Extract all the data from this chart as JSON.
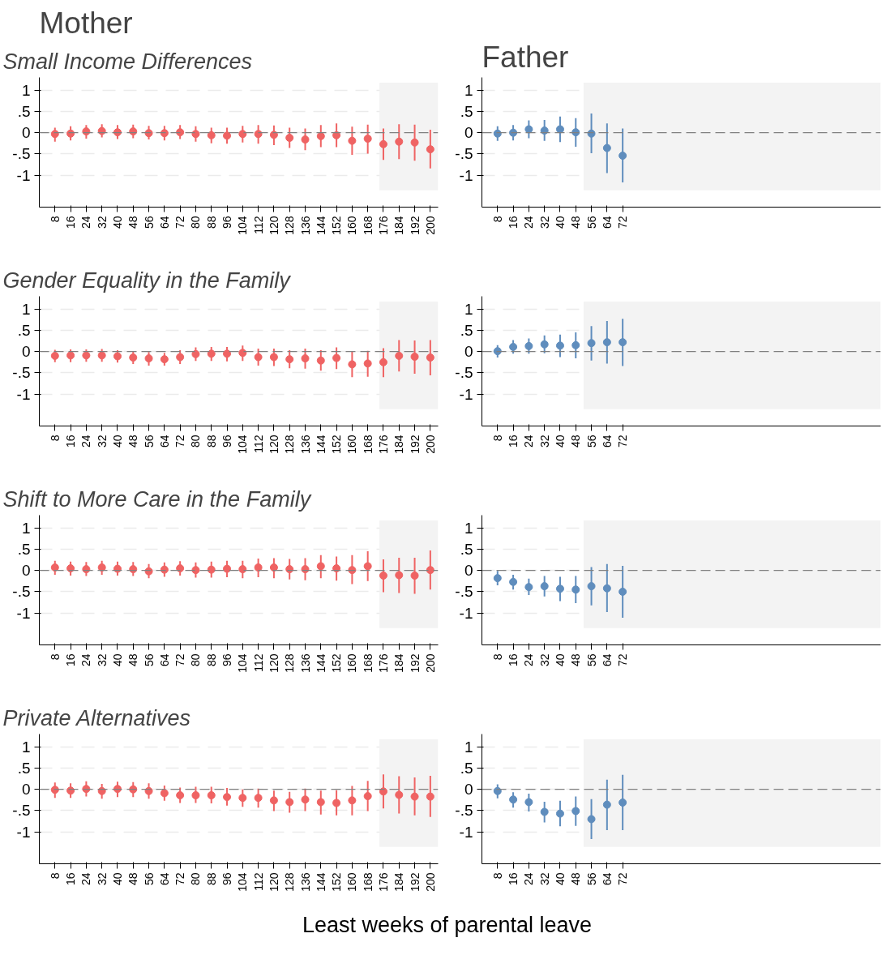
{
  "chart_data": [
    {
      "type": "scatter",
      "title": "Mother",
      "subtitle": "Small Income Differences",
      "x": [
        8,
        16,
        24,
        32,
        40,
        48,
        56,
        64,
        72,
        80,
        88,
        96,
        104,
        112,
        120,
        128,
        136,
        144,
        152,
        160,
        168,
        176,
        184,
        192,
        200
      ],
      "xlim": [
        0,
        204
      ],
      "xticks": [
        8,
        16,
        24,
        32,
        40,
        48,
        56,
        64,
        72,
        80,
        88,
        96,
        104,
        112,
        120,
        128,
        136,
        144,
        152,
        160,
        168,
        176,
        184,
        192,
        200
      ],
      "ylim": [
        -1.75,
        1.3
      ],
      "yticks": [
        {
          "value": -1,
          "label": "-1"
        },
        {
          "value": -0.5,
          "label": "-.5"
        },
        0,
        {
          "value": 0.5,
          "label": ".5"
        },
        1
      ],
      "grid": "y",
      "marker": "circle",
      "series": [
        {
          "color": "#ef6363",
          "values": [
            -0.03,
            -0.02,
            0.03,
            0.04,
            0.01,
            0.03,
            -0.01,
            -0.01,
            0.01,
            -0.03,
            -0.06,
            -0.07,
            -0.03,
            -0.03,
            -0.05,
            -0.12,
            -0.16,
            -0.08,
            -0.06,
            -0.19,
            -0.14,
            -0.27,
            -0.21,
            -0.23,
            -0.39
          ],
          "errors": [
            [
              -0.21,
              0.12
            ],
            [
              -0.18,
              0.15
            ],
            [
              -0.14,
              0.18
            ],
            [
              -0.11,
              0.2
            ],
            [
              -0.15,
              0.18
            ],
            [
              -0.13,
              0.19
            ],
            [
              -0.16,
              0.16
            ],
            [
              -0.18,
              0.16
            ],
            [
              -0.15,
              0.18
            ],
            [
              -0.21,
              0.15
            ],
            [
              -0.25,
              0.12
            ],
            [
              -0.26,
              0.12
            ],
            [
              -0.23,
              0.16
            ],
            [
              -0.26,
              0.18
            ],
            [
              -0.29,
              0.17
            ],
            [
              -0.36,
              0.12
            ],
            [
              -0.41,
              0.1
            ],
            [
              -0.34,
              0.18
            ],
            [
              -0.34,
              0.22
            ],
            [
              -0.52,
              0.14
            ],
            [
              -0.49,
              0.19
            ],
            [
              -0.64,
              0.1
            ],
            [
              -0.62,
              0.2
            ],
            [
              -0.66,
              0.19
            ],
            [
              -0.84,
              0.07
            ]
          ]
        }
      ],
      "ref_lines": [
        {
          "axis": "y",
          "value": 0,
          "color": "#808080",
          "line_style": "dashed"
        }
      ],
      "bands": [
        {
          "axis": "x",
          "from": 174,
          "to": 204,
          "color": "#f3f3f3"
        }
      ]
    },
    {
      "type": "scatter",
      "title": "Father",
      "x": [
        8,
        16,
        24,
        32,
        40,
        48,
        56,
        64,
        72
      ],
      "xlim": [
        0,
        204
      ],
      "xticks": [
        8,
        16,
        24,
        32,
        40,
        48,
        56,
        64,
        72
      ],
      "ylim": [
        -1.75,
        1.3
      ],
      "yticks": [
        {
          "value": -1,
          "label": "-1"
        },
        {
          "value": -0.5,
          "label": "-.5"
        },
        0,
        {
          "value": 0.5,
          "label": ".5"
        },
        1
      ],
      "grid": "y",
      "marker": "circle",
      "series": [
        {
          "color": "#5f8dbd",
          "values": [
            -0.02,
            0,
            0.08,
            0.05,
            0.08,
            0.01,
            -0.02,
            -0.36,
            -0.54
          ],
          "errors": [
            [
              -0.19,
              0.15
            ],
            [
              -0.18,
              0.18
            ],
            [
              -0.13,
              0.29
            ],
            [
              -0.19,
              0.3
            ],
            [
              -0.22,
              0.38
            ],
            [
              -0.33,
              0.34
            ],
            [
              -0.48,
              0.45
            ],
            [
              -0.95,
              0.22
            ],
            [
              -1.17,
              0.1
            ]
          ]
        }
      ],
      "ref_lines": [
        {
          "axis": "y",
          "value": 0,
          "color": "#808080",
          "line_style": "dashed"
        }
      ],
      "bands": [
        {
          "axis": "x",
          "from": 52,
          "to": 204,
          "color": "#f3f3f3"
        }
      ]
    },
    {
      "type": "scatter",
      "subtitle": "Gender Equality in the Family",
      "x": [
        8,
        16,
        24,
        32,
        40,
        48,
        56,
        64,
        72,
        80,
        88,
        96,
        104,
        112,
        120,
        128,
        136,
        144,
        152,
        160,
        168,
        176,
        184,
        192,
        200
      ],
      "xlim": [
        0,
        204
      ],
      "xticks": [
        8,
        16,
        24,
        32,
        40,
        48,
        56,
        64,
        72,
        80,
        88,
        96,
        104,
        112,
        120,
        128,
        136,
        144,
        152,
        160,
        168,
        176,
        184,
        192,
        200
      ],
      "ylim": [
        -1.75,
        1.3
      ],
      "yticks": [
        {
          "value": -1,
          "label": "-1"
        },
        {
          "value": -0.5,
          "label": "-.5"
        },
        0,
        {
          "value": 0.5,
          "label": ".5"
        },
        1
      ],
      "grid": "y",
      "marker": "circle",
      "series": [
        {
          "color": "#ef6363",
          "values": [
            -0.1,
            -0.09,
            -0.09,
            -0.09,
            -0.11,
            -0.14,
            -0.16,
            -0.18,
            -0.13,
            -0.06,
            -0.05,
            -0.05,
            -0.03,
            -0.13,
            -0.13,
            -0.18,
            -0.16,
            -0.21,
            -0.15,
            -0.3,
            -0.28,
            -0.25,
            -0.1,
            -0.12,
            -0.14
          ],
          "errors": [
            [
              -0.25,
              0.04
            ],
            [
              -0.25,
              0.05
            ],
            [
              -0.24,
              0.05
            ],
            [
              -0.24,
              0.06
            ],
            [
              -0.26,
              0.03
            ],
            [
              -0.29,
              0.01
            ],
            [
              -0.33,
              -0.01
            ],
            [
              -0.33,
              -0.03
            ],
            [
              -0.29,
              0.03
            ],
            [
              -0.22,
              0.1
            ],
            [
              -0.22,
              0.11
            ],
            [
              -0.23,
              0.11
            ],
            [
              -0.22,
              0.14
            ],
            [
              -0.33,
              0.07
            ],
            [
              -0.34,
              0.07
            ],
            [
              -0.39,
              0.03
            ],
            [
              -0.4,
              0.07
            ],
            [
              -0.45,
              0.03
            ],
            [
              -0.41,
              0.1
            ],
            [
              -0.6,
              0
            ],
            [
              -0.59,
              0.02
            ],
            [
              -0.6,
              0.08
            ],
            [
              -0.47,
              0.27
            ],
            [
              -0.52,
              0.26
            ],
            [
              -0.56,
              0.27
            ]
          ]
        }
      ],
      "ref_lines": [
        {
          "axis": "y",
          "value": 0,
          "color": "#808080",
          "line_style": "dashed"
        }
      ],
      "bands": [
        {
          "axis": "x",
          "from": 174,
          "to": 204,
          "color": "#f3f3f3"
        }
      ]
    },
    {
      "type": "scatter",
      "x": [
        8,
        16,
        24,
        32,
        40,
        48,
        56,
        64,
        72
      ],
      "xlim": [
        0,
        204
      ],
      "xticks": [
        8,
        16,
        24,
        32,
        40,
        48,
        56,
        64,
        72
      ],
      "ylim": [
        -1.75,
        1.3
      ],
      "yticks": [
        {
          "value": -1,
          "label": "-1"
        },
        {
          "value": -0.5,
          "label": "-.5"
        },
        0,
        {
          "value": 0.5,
          "label": ".5"
        },
        1
      ],
      "grid": "y",
      "marker": "circle",
      "series": [
        {
          "color": "#5f8dbd",
          "values": [
            0.01,
            0.11,
            0.13,
            0.17,
            0.14,
            0.15,
            0.2,
            0.22,
            0.22
          ],
          "errors": [
            [
              -0.14,
              0.15
            ],
            [
              -0.05,
              0.27
            ],
            [
              -0.05,
              0.31
            ],
            [
              -0.04,
              0.38
            ],
            [
              -0.13,
              0.4
            ],
            [
              -0.16,
              0.45
            ],
            [
              -0.21,
              0.6
            ],
            [
              -0.28,
              0.72
            ],
            [
              -0.34,
              0.77
            ]
          ]
        }
      ],
      "ref_lines": [
        {
          "axis": "y",
          "value": 0,
          "color": "#808080",
          "line_style": "dashed"
        }
      ],
      "bands": [
        {
          "axis": "x",
          "from": 52,
          "to": 204,
          "color": "#f3f3f3"
        }
      ]
    },
    {
      "type": "scatter",
      "subtitle": "Shift to More Care in the Family",
      "x": [
        8,
        16,
        24,
        32,
        40,
        48,
        56,
        64,
        72,
        80,
        88,
        96,
        104,
        112,
        120,
        128,
        136,
        144,
        152,
        160,
        168,
        176,
        184,
        192,
        200
      ],
      "xlim": [
        0,
        204
      ],
      "xticks": [
        8,
        16,
        24,
        32,
        40,
        48,
        56,
        64,
        72,
        80,
        88,
        96,
        104,
        112,
        120,
        128,
        136,
        144,
        152,
        160,
        168,
        176,
        184,
        192,
        200
      ],
      "ylim": [
        -1.75,
        1.3
      ],
      "yticks": [
        {
          "value": -1,
          "label": "-1"
        },
        {
          "value": -0.5,
          "label": "-.5"
        },
        0,
        {
          "value": 0.5,
          "label": ".5"
        },
        1
      ],
      "grid": "y",
      "marker": "circle",
      "series": [
        {
          "color": "#ef6363",
          "values": [
            0.07,
            0.05,
            0.03,
            0.07,
            0.04,
            0.03,
            -0.02,
            0.02,
            0.05,
            0.01,
            0.02,
            0.04,
            0.03,
            0.07,
            0.07,
            0.03,
            0.03,
            0.1,
            0.05,
            0.01,
            0.1,
            -0.12,
            -0.11,
            -0.12,
            0.01
          ],
          "errors": [
            [
              -0.1,
              0.23
            ],
            [
              -0.12,
              0.21
            ],
            [
              -0.13,
              0.2
            ],
            [
              -0.1,
              0.23
            ],
            [
              -0.12,
              0.21
            ],
            [
              -0.13,
              0.2
            ],
            [
              -0.18,
              0.15
            ],
            [
              -0.15,
              0.19
            ],
            [
              -0.12,
              0.22
            ],
            [
              -0.17,
              0.19
            ],
            [
              -0.17,
              0.21
            ],
            [
              -0.16,
              0.23
            ],
            [
              -0.18,
              0.23
            ],
            [
              -0.16,
              0.28
            ],
            [
              -0.18,
              0.29
            ],
            [
              -0.21,
              0.27
            ],
            [
              -0.23,
              0.29
            ],
            [
              -0.18,
              0.36
            ],
            [
              -0.24,
              0.33
            ],
            [
              -0.32,
              0.36
            ],
            [
              -0.25,
              0.45
            ],
            [
              -0.51,
              0.26
            ],
            [
              -0.53,
              0.3
            ],
            [
              -0.55,
              0.3
            ],
            [
              -0.45,
              0.47
            ]
          ]
        }
      ],
      "ref_lines": [
        {
          "axis": "y",
          "value": 0,
          "color": "#808080",
          "line_style": "dashed"
        }
      ],
      "bands": [
        {
          "axis": "x",
          "from": 174,
          "to": 204,
          "color": "#f3f3f3"
        }
      ]
    },
    {
      "type": "scatter",
      "x": [
        8,
        16,
        24,
        32,
        40,
        48,
        56,
        64,
        72
      ],
      "xlim": [
        0,
        204
      ],
      "xticks": [
        8,
        16,
        24,
        32,
        40,
        48,
        56,
        64,
        72
      ],
      "ylim": [
        -1.75,
        1.3
      ],
      "yticks": [
        {
          "value": -1,
          "label": "-1"
        },
        {
          "value": -0.5,
          "label": "-.5"
        },
        0,
        {
          "value": 0.5,
          "label": ".5"
        },
        1
      ],
      "grid": "y",
      "marker": "circle",
      "series": [
        {
          "color": "#5f8dbd",
          "values": [
            -0.18,
            -0.27,
            -0.39,
            -0.37,
            -0.43,
            -0.45,
            -0.37,
            -0.42,
            -0.5
          ],
          "errors": [
            [
              -0.35,
              -0.01
            ],
            [
              -0.45,
              -0.1
            ],
            [
              -0.58,
              -0.19
            ],
            [
              -0.61,
              -0.13
            ],
            [
              -0.72,
              -0.15
            ],
            [
              -0.77,
              -0.13
            ],
            [
              -0.82,
              0.08
            ],
            [
              -0.98,
              0.15
            ],
            [
              -1.11,
              0.11
            ]
          ]
        }
      ],
      "ref_lines": [
        {
          "axis": "y",
          "value": 0,
          "color": "#808080",
          "line_style": "dashed"
        }
      ],
      "bands": [
        {
          "axis": "x",
          "from": 52,
          "to": 204,
          "color": "#f3f3f3"
        }
      ]
    },
    {
      "type": "scatter",
      "subtitle": "Private Alternatives",
      "xlabel": "Least weeks of parental leave",
      "x": [
        8,
        16,
        24,
        32,
        40,
        48,
        56,
        64,
        72,
        80,
        88,
        96,
        104,
        112,
        120,
        128,
        136,
        144,
        152,
        160,
        168,
        176,
        184,
        192,
        200
      ],
      "xlim": [
        0,
        204
      ],
      "xticks": [
        8,
        16,
        24,
        32,
        40,
        48,
        56,
        64,
        72,
        80,
        88,
        96,
        104,
        112,
        120,
        128,
        136,
        144,
        152,
        160,
        168,
        176,
        184,
        192,
        200
      ],
      "ylim": [
        -1.75,
        1.3
      ],
      "yticks": [
        {
          "value": -1,
          "label": "-1"
        },
        {
          "value": -0.5,
          "label": "-.5"
        },
        0,
        {
          "value": 0.5,
          "label": ".5"
        },
        1
      ],
      "grid": "y",
      "marker": "circle",
      "series": [
        {
          "color": "#ef6363",
          "values": [
            -0.01,
            -0.03,
            0.01,
            -0.04,
            0.01,
            0,
            -0.04,
            -0.09,
            -0.14,
            -0.14,
            -0.14,
            -0.18,
            -0.2,
            -0.2,
            -0.26,
            -0.3,
            -0.24,
            -0.3,
            -0.32,
            -0.26,
            -0.16,
            -0.05,
            -0.13,
            -0.17,
            -0.17
          ],
          "errors": [
            [
              -0.2,
              0.16
            ],
            [
              -0.2,
              0.14
            ],
            [
              -0.17,
              0.19
            ],
            [
              -0.22,
              0.13
            ],
            [
              -0.18,
              0.18
            ],
            [
              -0.18,
              0.17
            ],
            [
              -0.22,
              0.14
            ],
            [
              -0.27,
              0.09
            ],
            [
              -0.32,
              0.04
            ],
            [
              -0.32,
              0.06
            ],
            [
              -0.33,
              0.06
            ],
            [
              -0.38,
              0.03
            ],
            [
              -0.41,
              0
            ],
            [
              -0.43,
              0.02
            ],
            [
              -0.51,
              -0.03
            ],
            [
              -0.55,
              -0.06
            ],
            [
              -0.51,
              0.02
            ],
            [
              -0.59,
              -0.03
            ],
            [
              -0.61,
              -0.02
            ],
            [
              -0.61,
              0.08
            ],
            [
              -0.51,
              0.2
            ],
            [
              -0.45,
              0.35
            ],
            [
              -0.57,
              0.31
            ],
            [
              -0.61,
              0.28
            ],
            [
              -0.65,
              0.32
            ]
          ]
        }
      ],
      "ref_lines": [
        {
          "axis": "y",
          "value": 0,
          "color": "#808080",
          "line_style": "dashed"
        }
      ],
      "bands": [
        {
          "axis": "x",
          "from": 174,
          "to": 204,
          "color": "#f3f3f3"
        }
      ]
    },
    {
      "type": "scatter",
      "x": [
        8,
        16,
        24,
        32,
        40,
        48,
        56,
        64,
        72
      ],
      "xlim": [
        0,
        204
      ],
      "xticks": [
        8,
        16,
        24,
        32,
        40,
        48,
        56,
        64,
        72
      ],
      "ylim": [
        -1.75,
        1.3
      ],
      "yticks": [
        {
          "value": -1,
          "label": "-1"
        },
        {
          "value": -0.5,
          "label": "-.5"
        },
        0,
        {
          "value": 0.5,
          "label": ".5"
        },
        1
      ],
      "grid": "y",
      "marker": "circle",
      "series": [
        {
          "color": "#5f8dbd",
          "values": [
            -0.04,
            -0.24,
            -0.3,
            -0.53,
            -0.57,
            -0.51,
            -0.7,
            -0.36,
            -0.31
          ],
          "errors": [
            [
              -0.21,
              0.12
            ],
            [
              -0.43,
              -0.07
            ],
            [
              -0.52,
              -0.1
            ],
            [
              -0.78,
              -0.29
            ],
            [
              -0.87,
              -0.27
            ],
            [
              -0.86,
              -0.17
            ],
            [
              -1.17,
              -0.23
            ],
            [
              -0.96,
              0.23
            ],
            [
              -0.96,
              0.34
            ]
          ]
        }
      ],
      "ref_lines": [
        {
          "axis": "y",
          "value": 0,
          "color": "#808080",
          "line_style": "dashed"
        }
      ],
      "bands": [
        {
          "axis": "x",
          "from": 52,
          "to": 204,
          "color": "#f3f3f3"
        }
      ]
    }
  ]
}
